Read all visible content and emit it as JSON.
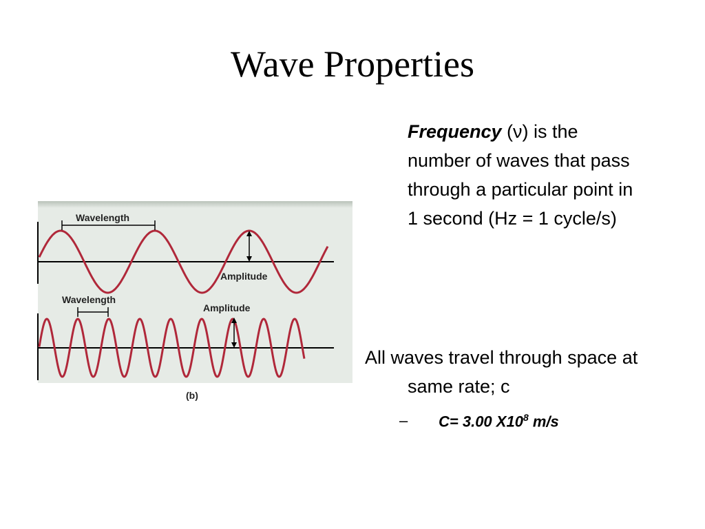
{
  "title": "Wave Properties",
  "paragraph": {
    "term": "Frequency",
    "text": " (ν) is the number of waves that pass through a particular point in 1 second (Hz = 1 cycle/s)"
  },
  "figure": {
    "top_wavelength": "Wavelength",
    "top_amplitude": "Amplitude",
    "bottom_wavelength": "Wavelength",
    "bottom_amplitude": "Amplitude",
    "caption": "(b)"
  },
  "bullet": {
    "text": "All waves travel through space at same rate; c",
    "sub": {
      "marker": "–",
      "text": "C= 3.00 X10",
      "sup": "8",
      "unit": " m/s"
    }
  }
}
